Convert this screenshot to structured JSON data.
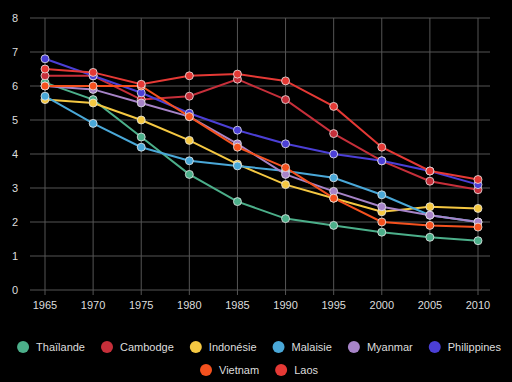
{
  "chart_data": {
    "type": "line",
    "x": [
      1965,
      1970,
      1975,
      1980,
      1985,
      1990,
      1995,
      2000,
      2005,
      2010
    ],
    "xlim": [
      1965,
      2010
    ],
    "xticks": [
      1965,
      1970,
      1975,
      1980,
      1985,
      1990,
      1995,
      2000,
      2005,
      2010
    ],
    "ylim": [
      0,
      8
    ],
    "yticks": [
      0,
      1,
      2,
      3,
      4,
      5,
      6,
      7,
      8
    ],
    "grid": true,
    "legend": "bottom",
    "marker": "circle",
    "series": [
      {
        "name": "Thaïlande",
        "color": "#4caf8a",
        "values": [
          6.1,
          5.6,
          4.5,
          3.4,
          2.6,
          2.1,
          1.9,
          1.7,
          1.55,
          1.45
        ]
      },
      {
        "name": "Cambodge",
        "color": "#c62f3a",
        "values": [
          6.3,
          6.3,
          5.6,
          5.7,
          6.2,
          5.6,
          4.6,
          3.8,
          3.2,
          2.95
        ]
      },
      {
        "name": "Indonésie",
        "color": "#f5c842",
        "values": [
          5.6,
          5.5,
          5.0,
          4.4,
          3.7,
          3.1,
          2.7,
          2.3,
          2.45,
          2.4
        ]
      },
      {
        "name": "Malaisie",
        "color": "#4aa8d8",
        "values": [
          5.7,
          4.9,
          4.2,
          3.8,
          3.65,
          3.5,
          3.3,
          2.8,
          2.2,
          2.0
        ]
      },
      {
        "name": "Myanmar",
        "color": "#a784c8",
        "values": [
          6.0,
          5.9,
          5.5,
          5.1,
          4.3,
          3.4,
          2.9,
          2.45,
          2.2,
          2.0
        ]
      },
      {
        "name": "Philippines",
        "color": "#4b3fd6",
        "values": [
          6.8,
          6.3,
          5.8,
          5.2,
          4.7,
          4.3,
          4.0,
          3.8,
          3.5,
          3.1
        ]
      },
      {
        "name": "Vietnam",
        "color": "#f4511e",
        "values": [
          6.0,
          6.0,
          6.0,
          5.1,
          4.2,
          3.6,
          2.7,
          2.0,
          1.9,
          1.85
        ]
      },
      {
        "name": "Laos",
        "color": "#e53935",
        "values": [
          6.5,
          6.4,
          6.05,
          6.3,
          6.35,
          6.15,
          5.4,
          4.2,
          3.5,
          3.25
        ]
      }
    ]
  }
}
